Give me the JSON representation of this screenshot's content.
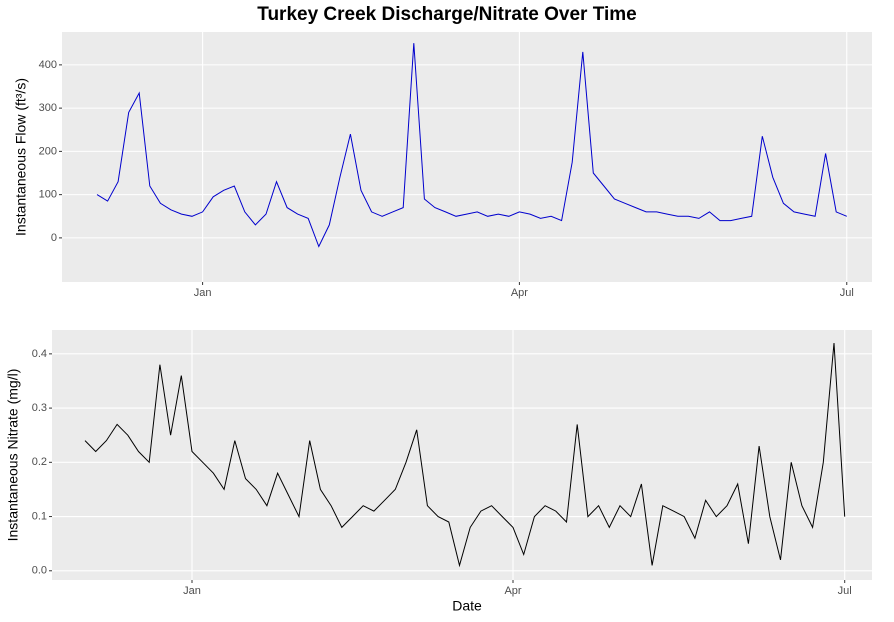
{
  "chart_data": [
    {
      "type": "line",
      "title": "Turkey Creek Discharge/Nitrate Over Time",
      "y_label": "Instantaneous Flow (ft³/s)",
      "color": "#0000cd",
      "categories": [
        null,
        null,
        null,
        null,
        null,
        null,
        null,
        null,
        null,
        null,
        "Jan",
        null,
        null,
        null,
        null,
        null,
        null,
        null,
        null,
        null,
        null,
        null,
        null,
        null,
        null,
        null,
        null,
        null,
        null,
        null,
        null,
        null,
        null,
        null,
        null,
        null,
        null,
        null,
        null,
        null,
        "Apr",
        null,
        null,
        null,
        null,
        null,
        null,
        null,
        null,
        null,
        null,
        null,
        null,
        null,
        null,
        null,
        null,
        null,
        null,
        null,
        null,
        null,
        null,
        null,
        null,
        null,
        null,
        null,
        null,
        null,
        null,
        "Jul"
      ],
      "values": [
        100,
        85,
        130,
        290,
        335,
        120,
        80,
        65,
        55,
        50,
        60,
        95,
        110,
        120,
        60,
        30,
        55,
        130,
        70,
        55,
        45,
        -20,
        30,
        140,
        240,
        110,
        60,
        50,
        60,
        70,
        450,
        90,
        70,
        60,
        50,
        55,
        60,
        50,
        55,
        50,
        60,
        55,
        45,
        50,
        40,
        175,
        430,
        150,
        120,
        90,
        80,
        70,
        60,
        60,
        55,
        50,
        50,
        45,
        60,
        40,
        40,
        45,
        50,
        235,
        140,
        80,
        60,
        55,
        50,
        195,
        60,
        50
      ],
      "ylim": [
        -102,
        476
      ],
      "yticks": [
        0,
        100,
        200,
        300,
        400
      ],
      "grid": true
    },
    {
      "type": "line",
      "y_label": "Instantaneous Nitrate (mg/l)",
      "x_label": "Date",
      "color": "#000000",
      "categories": [
        null,
        null,
        null,
        null,
        null,
        null,
        null,
        null,
        null,
        null,
        "Jan",
        null,
        null,
        null,
        null,
        null,
        null,
        null,
        null,
        null,
        null,
        null,
        null,
        null,
        null,
        null,
        null,
        null,
        null,
        null,
        null,
        null,
        null,
        null,
        null,
        null,
        null,
        null,
        null,
        null,
        "Apr",
        null,
        null,
        null,
        null,
        null,
        null,
        null,
        null,
        null,
        null,
        null,
        null,
        null,
        null,
        null,
        null,
        null,
        null,
        null,
        null,
        null,
        null,
        null,
        null,
        null,
        null,
        null,
        null,
        null,
        null,
        "Jul"
      ],
      "values": [
        0.24,
        0.22,
        0.24,
        0.27,
        0.25,
        0.22,
        0.2,
        0.38,
        0.25,
        0.36,
        0.22,
        0.2,
        0.18,
        0.15,
        0.24,
        0.17,
        0.15,
        0.12,
        0.18,
        0.14,
        0.1,
        0.24,
        0.15,
        0.12,
        0.08,
        0.1,
        0.12,
        0.11,
        0.13,
        0.15,
        0.2,
        0.26,
        0.12,
        0.1,
        0.09,
        0.01,
        0.08,
        0.11,
        0.12,
        0.1,
        0.08,
        0.03,
        0.1,
        0.12,
        0.11,
        0.09,
        0.27,
        0.1,
        0.12,
        0.08,
        0.12,
        0.1,
        0.16,
        0.01,
        0.12,
        0.11,
        0.1,
        0.06,
        0.13,
        0.1,
        0.12,
        0.16,
        0.05,
        0.23,
        0.1,
        0.02,
        0.2,
        0.12,
        0.08,
        0.2,
        0.42,
        0.1
      ],
      "ylim": [
        -0.017,
        0.444
      ],
      "yticks": [
        {
          "value": 0,
          "label": "0.0"
        },
        0.1,
        0.2,
        0.3,
        0.4
      ],
      "grid": true
    }
  ]
}
